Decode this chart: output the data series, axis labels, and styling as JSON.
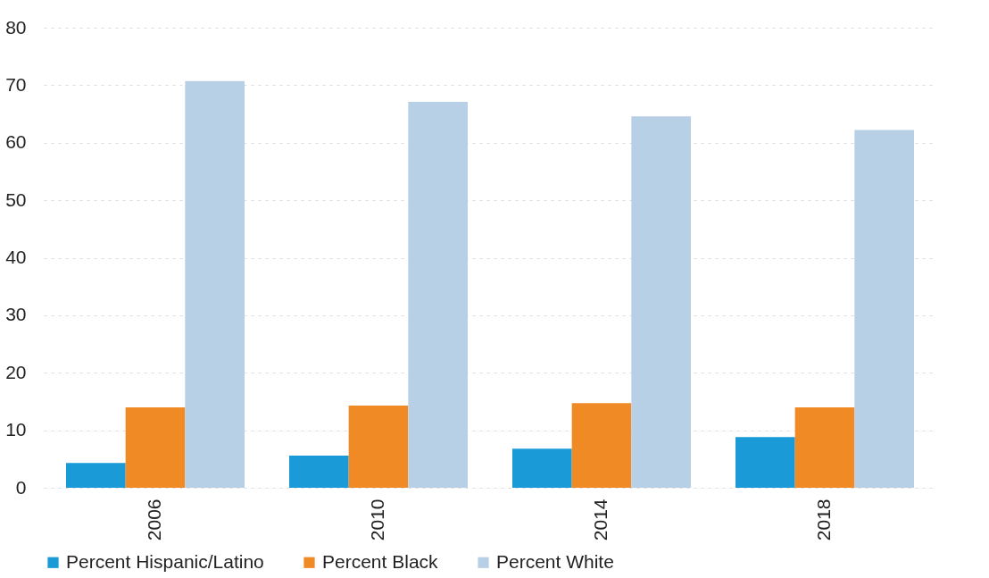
{
  "chart_data": {
    "type": "bar",
    "categories": [
      "2006",
      "2010",
      "2014",
      "2018"
    ],
    "series": [
      {
        "name": "Percent Hispanic/Latino",
        "color": "#1a9ad6",
        "values": [
          4.3,
          5.6,
          6.8,
          8.8
        ]
      },
      {
        "name": "Percent Black",
        "color": "#f08a24",
        "values": [
          14.0,
          14.3,
          14.7,
          14.0
        ]
      },
      {
        "name": "Percent White",
        "color": "#b8d0e6",
        "values": [
          70.7,
          67.1,
          64.6,
          62.2
        ]
      }
    ],
    "ylim": [
      0,
      80
    ],
    "yticks": [
      0,
      10,
      20,
      30,
      40,
      50,
      60,
      70,
      80
    ],
    "grid": "y",
    "legend": "bottom"
  }
}
